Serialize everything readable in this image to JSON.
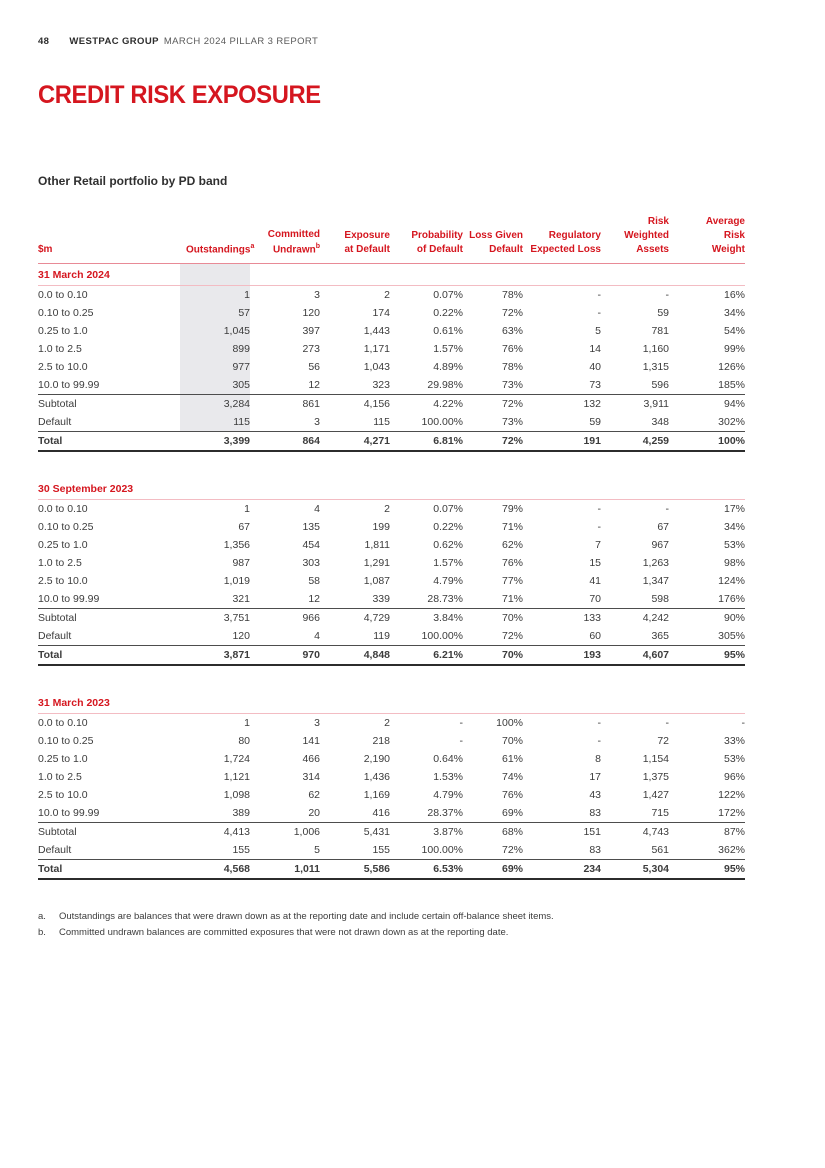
{
  "colors": {
    "red": "#d5161f",
    "pinkstrong": "#e88a96",
    "pinklight": "#f3bcc3",
    "shade": "#e9e9ec",
    "text": "#3c3c3c"
  },
  "header": {
    "page_number": "48",
    "brand": "WESTPAC GROUP",
    "report": "MARCH 2024 PILLAR 3 REPORT"
  },
  "title": "CREDIT RISK EXPOSURE",
  "table_title": "Other Retail portfolio by PD band",
  "table": {
    "columns": [
      {
        "lines": [
          "$m"
        ],
        "sup": ""
      },
      {
        "lines": [
          "Outstandings"
        ],
        "sup": "a"
      },
      {
        "lines": [
          "Committed",
          "Undrawn"
        ],
        "sup": "b"
      },
      {
        "lines": [
          "Exposure",
          "at Default"
        ],
        "sup": ""
      },
      {
        "lines": [
          "Probability",
          "of Default"
        ],
        "sup": ""
      },
      {
        "lines": [
          "Loss Given",
          "Default"
        ],
        "sup": ""
      },
      {
        "lines": [
          "Regulatory",
          "Expected Loss"
        ],
        "sup": ""
      },
      {
        "lines": [
          "Risk",
          "Weighted",
          "Assets"
        ],
        "sup": ""
      },
      {
        "lines": [
          "Average",
          "Risk",
          "Weight"
        ],
        "sup": ""
      }
    ],
    "sections": [
      {
        "date": "31 March 2024",
        "highlight": true,
        "rows": [
          {
            "type": "data",
            "label": "0.0 to 0.10",
            "values": [
              "1",
              "3",
              "2",
              "0.07%",
              "78%",
              "-",
              "-",
              "16%"
            ]
          },
          {
            "type": "data",
            "label": "0.10 to 0.25",
            "values": [
              "57",
              "120",
              "174",
              "0.22%",
              "72%",
              "-",
              "59",
              "34%"
            ]
          },
          {
            "type": "data",
            "label": "0.25 to 1.0",
            "values": [
              "1,045",
              "397",
              "1,443",
              "0.61%",
              "63%",
              "5",
              "781",
              "54%"
            ]
          },
          {
            "type": "data",
            "label": "1.0 to 2.5",
            "values": [
              "899",
              "273",
              "1,171",
              "1.57%",
              "76%",
              "14",
              "1,160",
              "99%"
            ]
          },
          {
            "type": "data",
            "label": "2.5 to 10.0",
            "values": [
              "977",
              "56",
              "1,043",
              "4.89%",
              "78%",
              "40",
              "1,315",
              "126%"
            ]
          },
          {
            "type": "data",
            "label": "10.0 to 99.99",
            "values": [
              "305",
              "12",
              "323",
              "29.98%",
              "73%",
              "73",
              "596",
              "185%"
            ]
          },
          {
            "type": "subtotal",
            "label": "Subtotal",
            "values": [
              "3,284",
              "861",
              "4,156",
              "4.22%",
              "72%",
              "132",
              "3,911",
              "94%"
            ]
          },
          {
            "type": "data",
            "label": "Default",
            "values": [
              "115",
              "3",
              "115",
              "100.00%",
              "73%",
              "59",
              "348",
              "302%"
            ]
          },
          {
            "type": "total",
            "label": "Total",
            "values": [
              "3,399",
              "864",
              "4,271",
              "6.81%",
              "72%",
              "191",
              "4,259",
              "100%"
            ]
          }
        ]
      },
      {
        "date": "30 September 2023",
        "highlight": false,
        "rows": [
          {
            "type": "data",
            "label": "0.0 to 0.10",
            "values": [
              "1",
              "4",
              "2",
              "0.07%",
              "79%",
              "-",
              "-",
              "17%"
            ]
          },
          {
            "type": "data",
            "label": "0.10 to 0.25",
            "values": [
              "67",
              "135",
              "199",
              "0.22%",
              "71%",
              "-",
              "67",
              "34%"
            ]
          },
          {
            "type": "data",
            "label": "0.25 to 1.0",
            "values": [
              "1,356",
              "454",
              "1,811",
              "0.62%",
              "62%",
              "7",
              "967",
              "53%"
            ]
          },
          {
            "type": "data",
            "label": "1.0 to 2.5",
            "values": [
              "987",
              "303",
              "1,291",
              "1.57%",
              "76%",
              "15",
              "1,263",
              "98%"
            ]
          },
          {
            "type": "data",
            "label": "2.5 to 10.0",
            "values": [
              "1,019",
              "58",
              "1,087",
              "4.79%",
              "77%",
              "41",
              "1,347",
              "124%"
            ]
          },
          {
            "type": "data",
            "label": "10.0 to 99.99",
            "values": [
              "321",
              "12",
              "339",
              "28.73%",
              "71%",
              "70",
              "598",
              "176%"
            ]
          },
          {
            "type": "subtotal",
            "label": "Subtotal",
            "values": [
              "3,751",
              "966",
              "4,729",
              "3.84%",
              "70%",
              "133",
              "4,242",
              "90%"
            ]
          },
          {
            "type": "data",
            "label": "Default",
            "values": [
              "120",
              "4",
              "119",
              "100.00%",
              "72%",
              "60",
              "365",
              "305%"
            ]
          },
          {
            "type": "total",
            "label": "Total",
            "values": [
              "3,871",
              "970",
              "4,848",
              "6.21%",
              "70%",
              "193",
              "4,607",
              "95%"
            ]
          }
        ]
      },
      {
        "date": "31 March 2023",
        "highlight": false,
        "rows": [
          {
            "type": "data",
            "label": "0.0 to 0.10",
            "values": [
              "1",
              "3",
              "2",
              "-",
              "100%",
              "-",
              "-",
              "-"
            ]
          },
          {
            "type": "data",
            "label": "0.10 to 0.25",
            "values": [
              "80",
              "141",
              "218",
              "-",
              "70%",
              "-",
              "72",
              "33%"
            ]
          },
          {
            "type": "data",
            "label": "0.25 to 1.0",
            "values": [
              "1,724",
              "466",
              "2,190",
              "0.64%",
              "61%",
              "8",
              "1,154",
              "53%"
            ]
          },
          {
            "type": "data",
            "label": "1.0 to 2.5",
            "values": [
              "1,121",
              "314",
              "1,436",
              "1.53%",
              "74%",
              "17",
              "1,375",
              "96%"
            ]
          },
          {
            "type": "data",
            "label": "2.5 to 10.0",
            "values": [
              "1,098",
              "62",
              "1,169",
              "4.79%",
              "76%",
              "43",
              "1,427",
              "122%"
            ]
          },
          {
            "type": "data",
            "label": "10.0 to 99.99",
            "values": [
              "389",
              "20",
              "416",
              "28.37%",
              "69%",
              "83",
              "715",
              "172%"
            ]
          },
          {
            "type": "subtotal",
            "label": "Subtotal",
            "values": [
              "4,413",
              "1,006",
              "5,431",
              "3.87%",
              "68%",
              "151",
              "4,743",
              "87%"
            ]
          },
          {
            "type": "data",
            "label": "Default",
            "values": [
              "155",
              "5",
              "155",
              "100.00%",
              "72%",
              "83",
              "561",
              "362%"
            ]
          },
          {
            "type": "total",
            "label": "Total",
            "values": [
              "4,568",
              "1,011",
              "5,586",
              "6.53%",
              "69%",
              "234",
              "5,304",
              "95%"
            ]
          }
        ]
      }
    ],
    "footnotes": [
      {
        "marker": "a.",
        "text": "Outstandings are balances that were drawn down as at the reporting date and include certain off-balance sheet items."
      },
      {
        "marker": "b.",
        "text": "Committed undrawn balances are committed exposures that were not drawn down as at the reporting date."
      }
    ]
  }
}
